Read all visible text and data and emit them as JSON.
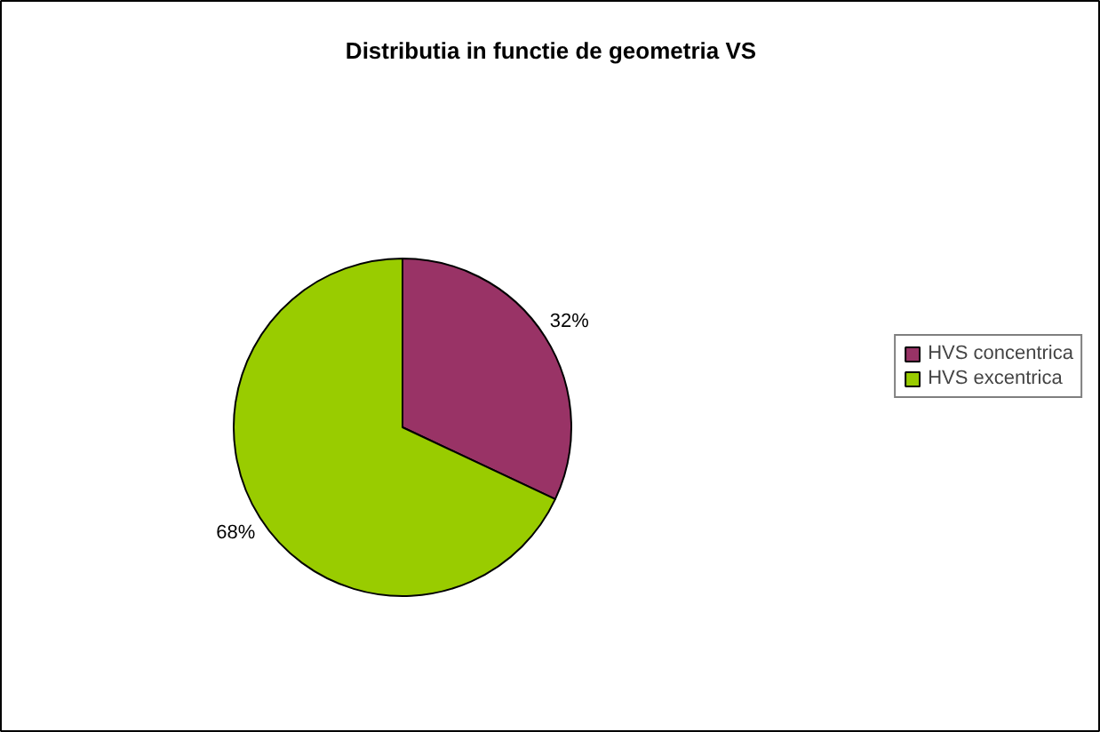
{
  "chart_data": {
    "type": "pie",
    "title": "Distributia in functie de geometria VS",
    "categories": [
      "HVS concentrica",
      "HVS excentrica"
    ],
    "values": [
      32,
      68
    ],
    "colors": [
      "#993366",
      "#99cc00"
    ],
    "value_labels": [
      "32%",
      "68%"
    ],
    "legend": "right"
  }
}
